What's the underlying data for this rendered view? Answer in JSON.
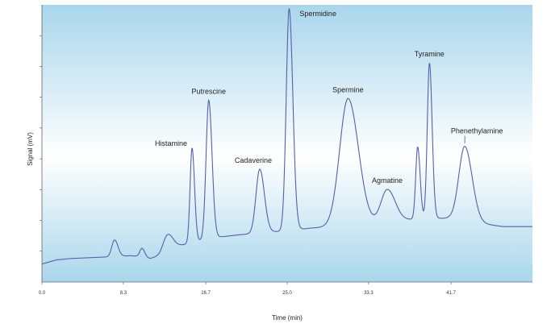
{
  "chart_data": {
    "type": "line",
    "title": "",
    "xlabel": "Time (min)",
    "ylabel": "Signal (mV)",
    "xlim": [
      0,
      50
    ],
    "ylim": [
      0,
      100
    ],
    "x_ticks": [
      {
        "value": 0.0,
        "label": "0.0"
      },
      {
        "value": 8.3,
        "label": "8.3"
      },
      {
        "value": 16.7,
        "label": "16.7"
      },
      {
        "value": 25.0,
        "label": "25.0"
      },
      {
        "value": 33.3,
        "label": "33.3"
      },
      {
        "value": 41.7,
        "label": "41.7"
      }
    ],
    "grid": false,
    "colors": {
      "line": "#5560a8",
      "bg_top": "#a9d6ec",
      "bg_mid": "#ffffff",
      "bg_bottom": "#a9d6ec",
      "axis": "#333333"
    },
    "baseline": [
      [
        0.0,
        6.5
      ],
      [
        1.5,
        8
      ],
      [
        3.0,
        8.5
      ],
      [
        5.0,
        8.8
      ],
      [
        7.5,
        9.2
      ],
      [
        9.0,
        9.5
      ],
      [
        10.2,
        9.2
      ],
      [
        11.0,
        8.5
      ],
      [
        12.0,
        9.5
      ],
      [
        13.0,
        11.5
      ],
      [
        14.0,
        13
      ],
      [
        15.5,
        14.5
      ],
      [
        17.5,
        16
      ],
      [
        20.0,
        17
      ],
      [
        22.5,
        17.8
      ],
      [
        25.0,
        18.5
      ],
      [
        27.5,
        19.5
      ],
      [
        30.0,
        20
      ],
      [
        33.0,
        20.5
      ],
      [
        35.5,
        21.5
      ],
      [
        37.5,
        22.5
      ],
      [
        39.5,
        23
      ],
      [
        41.5,
        23
      ],
      [
        43.0,
        22
      ],
      [
        45.0,
        21
      ],
      [
        47.0,
        20
      ],
      [
        50.0,
        20
      ]
    ],
    "peaks": [
      {
        "name": "",
        "rt": 7.4,
        "height": 6,
        "width": 0.28
      },
      {
        "name": "",
        "rt": 10.2,
        "height": 3,
        "width": 0.22
      },
      {
        "name": "",
        "rt": 12.8,
        "height": 6,
        "width": 0.45
      },
      {
        "name": "Histamine",
        "rt": 15.3,
        "height": 34,
        "width": 0.2
      },
      {
        "name": "Putrescine",
        "rt": 17.0,
        "height": 50,
        "width": 0.27
      },
      {
        "name": "Cadaverine",
        "rt": 22.2,
        "height": 23,
        "width": 0.38
      },
      {
        "name": "Spermidine",
        "rt": 25.2,
        "height": 80,
        "width": 0.3
      },
      {
        "name": "Spermine",
        "rt": 31.2,
        "height": 46,
        "width": 0.85
      },
      {
        "name": "Agmatine",
        "rt": 35.2,
        "height": 12,
        "width": 0.65
      },
      {
        "name": "",
        "rt": 38.3,
        "height": 26,
        "width": 0.2
      },
      {
        "name": "Tyramine",
        "rt": 39.5,
        "height": 56,
        "width": 0.22
      },
      {
        "name": "Phenethylamine",
        "rt": 43.1,
        "height": 27,
        "width": 0.6
      }
    ]
  }
}
